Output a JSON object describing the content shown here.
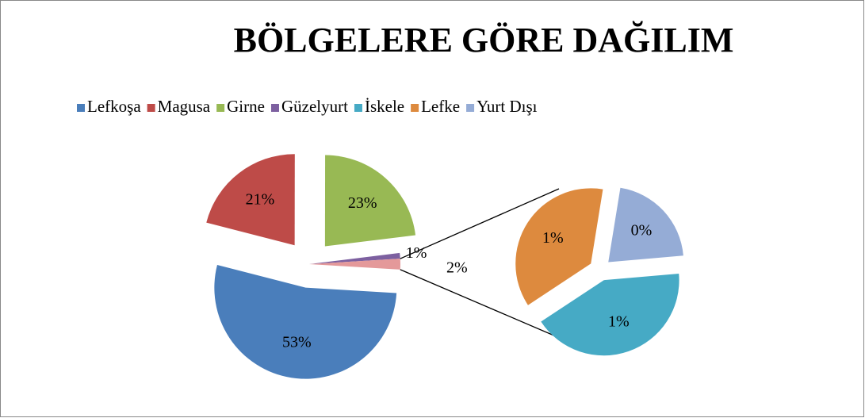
{
  "chart_data": {
    "type": "pie-of-pie",
    "title": "BÖLGELERE GÖRE DAĞILIM",
    "categories": [
      "Lefkoşa",
      "Magusa",
      "Girne",
      "Güzelyurt",
      "İskele",
      "Lefke",
      "Yurt Dışı"
    ],
    "values": [
      53,
      21,
      23,
      1,
      0.8,
      0.7,
      0.4
    ],
    "value_labels": [
      "53%",
      "21%",
      "23%",
      "1%",
      "1%",
      "1%",
      "0%"
    ],
    "colors": [
      "#4a7ebb",
      "#be4b48",
      "#98b954",
      "#7d60a0",
      "#46aac5",
      "#dd8a3e",
      "#95acd6"
    ],
    "split": 3,
    "other": {
      "value": 1.9,
      "label": "2%",
      "color": "#e4999a"
    },
    "legend": "top"
  }
}
